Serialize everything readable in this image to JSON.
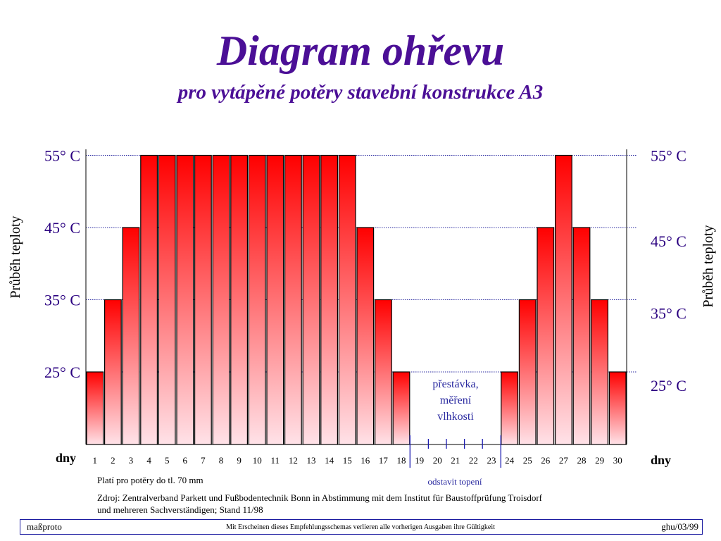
{
  "title": "Diagram ohřevu",
  "subtitle": "pro vytápěné potěry stavební konstrukce A3",
  "chart_data": {
    "type": "bar",
    "categories": [
      "1",
      "2",
      "3",
      "4",
      "5",
      "6",
      "7",
      "8",
      "9",
      "10",
      "11",
      "12",
      "13",
      "14",
      "15",
      "16",
      "17",
      "18",
      "19",
      "20",
      "21",
      "22",
      "23",
      "24",
      "25",
      "26",
      "27",
      "28",
      "29",
      "30"
    ],
    "values": [
      25,
      35,
      45,
      55,
      55,
      55,
      55,
      55,
      55,
      55,
      55,
      55,
      55,
      55,
      55,
      45,
      35,
      25,
      null,
      null,
      null,
      null,
      null,
      25,
      35,
      45,
      55,
      45,
      35,
      25
    ],
    "yticks": [
      "25° C",
      "35° C",
      "45° C",
      "55° C"
    ],
    "ytick_values": [
      25,
      35,
      45,
      55
    ],
    "ylim": [
      15,
      56
    ],
    "ylabel": "Průběh teploty",
    "xlabel": "dny",
    "grid": "horizontal dotted lines at 25, 35, 45, 55",
    "bar_colors": {
      "top": "#ff0000",
      "bottom": "#ffe2e8",
      "outline": "#000000"
    },
    "annotations": {
      "pause": [
        "přestávka,",
        "měření",
        "vlhkosti"
      ],
      "heating_off": "odstavit topení"
    }
  },
  "notes": {
    "applies": "Platí  pro potěry do tl. 70 mm",
    "source_line1": "Zdroj: Zentralverband Parkett und Fußbodentechnik Bonn in Abstimmung mit dem Institut für Baustoffprüfung Troisdorf",
    "source_line2": "und mehreren Sachverständigen; Stand 11/98"
  },
  "footer": {
    "left": "maßproto",
    "center": "Mit Erscheinen dieses Empfehlungsschemas verlieren alle vorherigen Ausgaben ihre Gültigkeit",
    "right": "ghu/03/99"
  },
  "colors": {
    "title": "#4b0f96",
    "grid": "#2a2aa0",
    "ytick": "#2a0080"
  }
}
